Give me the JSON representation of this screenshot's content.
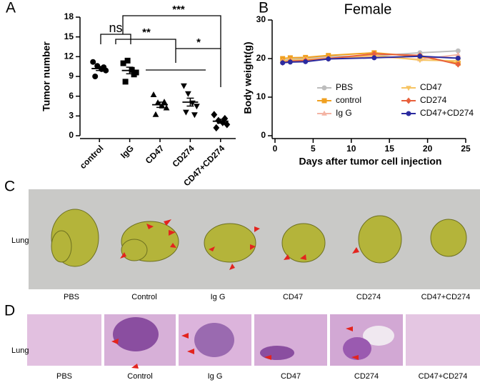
{
  "panel_letters": [
    "A",
    "B",
    "C",
    "D"
  ],
  "chart_data": [
    {
      "type": "dot",
      "ylabel": "Tumor number",
      "categories": [
        "control",
        "IgG",
        "CD47",
        "CD274",
        "CD47+CD274"
      ],
      "values": [
        [
          11.2,
          10.6,
          10.1,
          9.9,
          9.0,
          10.4
        ],
        [
          11.0,
          11.4,
          10.0,
          9.6,
          8.2,
          9.3
        ],
        [
          6.2,
          5.0,
          4.5,
          4.2,
          3.2,
          5.1
        ],
        [
          7.6,
          6.4,
          5.0,
          4.5,
          3.6,
          3.2
        ],
        [
          3.2,
          2.3,
          2.0,
          1.7,
          1.2,
          2.6
        ]
      ],
      "means": [
        10.2,
        9.9,
        4.7,
        5.1,
        2.2
      ],
      "sems": [
        0.3,
        0.5,
        0.4,
        0.6,
        0.3
      ],
      "markers": [
        "circle",
        "square",
        "triangle-up",
        "triangle-down",
        "diamond"
      ],
      "color": "#000000",
      "ylim": [
        0,
        18
      ],
      "yticks": [
        0,
        3,
        6,
        9,
        12,
        15,
        18
      ],
      "annotations": [
        "ns",
        "**",
        "***",
        "*"
      ]
    },
    {
      "type": "line",
      "title": "Female",
      "xlabel": "Days after tumor cell injection",
      "ylabel": "Body weight(g)",
      "x": [
        1,
        2,
        4,
        7,
        13,
        19,
        24
      ],
      "series": [
        {
          "name": "PBS",
          "color": "#bdbdbd",
          "marker": "circle",
          "values": [
            19.5,
            19.8,
            20.0,
            20.5,
            20.7,
            21.5,
            22.0
          ]
        },
        {
          "name": "control",
          "color": "#f0a020",
          "marker": "square",
          "values": [
            20.0,
            20.2,
            20.3,
            20.8,
            21.5,
            20.5,
            18.8
          ]
        },
        {
          "name": "Ig G",
          "color": "#f4b4a4",
          "marker": "triangle-up",
          "values": [
            19.3,
            19.5,
            19.8,
            20.2,
            20.5,
            19.8,
            21.0
          ]
        },
        {
          "name": "CD47",
          "color": "#f6c463",
          "marker": "triangle-down",
          "values": [
            19.2,
            19.6,
            19.8,
            20.0,
            20.8,
            19.6,
            19.4
          ]
        },
        {
          "name": "CD274",
          "color": "#e8603c",
          "marker": "diamond",
          "values": [
            19.0,
            19.3,
            19.5,
            20.0,
            21.2,
            20.8,
            18.5
          ]
        },
        {
          "name": "CD47+CD274",
          "color": "#2b2ba0",
          "marker": "circle",
          "values": [
            18.9,
            19.1,
            19.2,
            19.9,
            20.2,
            20.6,
            20.1
          ]
        }
      ],
      "xlim": [
        0,
        25
      ],
      "xticks": [
        0,
        5,
        10,
        15,
        20,
        25
      ],
      "ylim": [
        0,
        30
      ],
      "yticks": [
        0,
        10,
        20,
        30
      ],
      "legend": "lower-right"
    }
  ],
  "photo_c": {
    "row_label": "Lung",
    "labels": [
      "PBS",
      "Control",
      "Ig G",
      "CD47",
      "CD274",
      "CD47+CD274"
    ]
  },
  "photo_d": {
    "row_label": "Lung",
    "labels": [
      "PBS",
      "Control",
      "Ig G",
      "CD47",
      "CD274",
      "CD47+CD274"
    ]
  }
}
